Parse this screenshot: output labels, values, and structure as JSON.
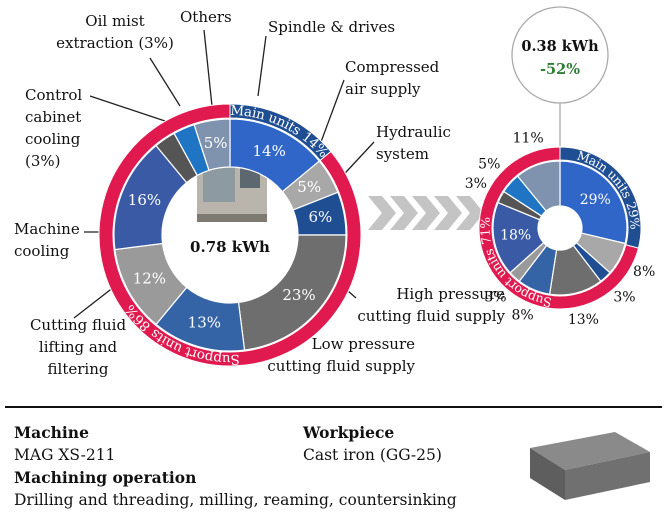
{
  "chart_data": [
    {
      "type": "donut",
      "center_label": "0.78 kWh",
      "categories": [
        "Spindle & drives",
        "Compressed\nair supply",
        "Hydraulic\nsystem",
        "High pressure\ncutting fluid supply",
        "Low pressure\ncutting fluid supply",
        "Cutting fluid\nlifting and\nfiltering",
        "Machine\ncooling",
        "Control\ncabinet\ncooling\n(3%)",
        "Oil mist\nextraction (3%)",
        "Others"
      ],
      "values": [
        14,
        5,
        6,
        23,
        13,
        12,
        16,
        3,
        3,
        5
      ],
      "value_labels": [
        "14%",
        "5%",
        "6%",
        "23%",
        "13%",
        "12%",
        "16%",
        null,
        null,
        "5%"
      ],
      "colors": [
        "#2f66c8",
        "#a8a8a8",
        "#1f4e92",
        "#6e6e6e",
        "#3564a6",
        "#9a9a9a",
        "#3a5aa6",
        "#555555",
        "#1f74c4",
        "#7f93ae"
      ],
      "rings": {
        "categories": [
          "Main units",
          "Support units"
        ],
        "values": [
          14,
          86
        ],
        "value_labels": [
          "14%",
          "86%"
        ],
        "colors": [
          "#1f4e92",
          "#e0194f"
        ]
      }
    },
    {
      "type": "donut",
      "callout": {
        "title": "0.38 kWh",
        "change": "-52%"
      },
      "values": [
        29,
        8,
        3,
        13,
        8,
        3,
        18,
        3,
        5,
        11
      ],
      "value_labels": [
        "29%",
        "8%",
        "3%",
        "13%",
        "8%",
        "3%",
        "18%",
        "3%",
        "5%",
        "11%"
      ],
      "colors": [
        "#2f66c8",
        "#a8a8a8",
        "#1f4e92",
        "#6e6e6e",
        "#3564a6",
        "#9a9a9a",
        "#3a5aa6",
        "#555555",
        "#1f74c4",
        "#7f93ae"
      ],
      "rings": {
        "categories": [
          "Main units",
          "Support units"
        ],
        "values": [
          29,
          71
        ],
        "value_labels": [
          "29%",
          "71%"
        ],
        "colors": [
          "#1f4e92",
          "#e0194f"
        ]
      }
    }
  ],
  "info": {
    "machine": {
      "heading": "Machine",
      "text": "MAG XS-211"
    },
    "operation": {
      "heading": "Machining operation",
      "text": "Drilling and threading, milling, reaming, countersinking"
    },
    "workpiece": {
      "heading": "Workpiece",
      "text": "Cast iron (GG-25)"
    }
  }
}
